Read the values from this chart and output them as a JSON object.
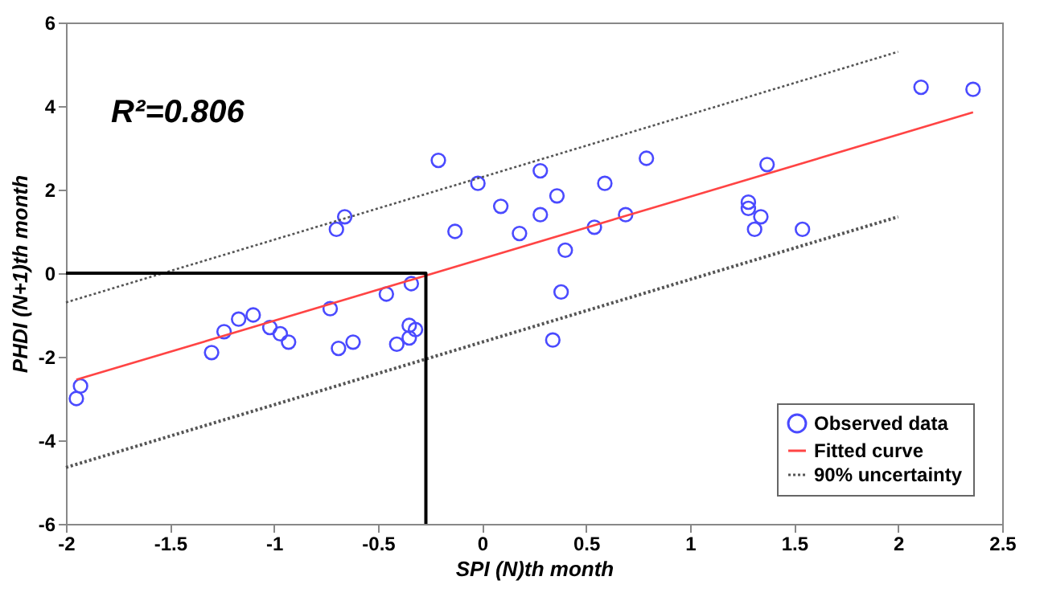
{
  "chart_data": {
    "type": "scatter",
    "xlabel": "SPI (N)th month",
    "ylabel": "PHDI (N+1)th month",
    "xlim": [
      -2,
      2.5
    ],
    "xticks": [
      -2,
      -1.5,
      -1,
      -0.5,
      0,
      0.5,
      1,
      1.5,
      2,
      2.5
    ],
    "ylim": [
      -6,
      6
    ],
    "yticks": [
      -6,
      -4,
      -2,
      0,
      2,
      4,
      6
    ],
    "grid": false,
    "legend": "bottom right",
    "annotations": [
      "R²=0.806"
    ],
    "series": [
      {
        "name": "Observed data",
        "marker": "circle",
        "color": "#4a4aff",
        "x": [
          -1.95,
          -1.93,
          -1.3,
          -1.24,
          -1.17,
          -1.1,
          -1.02,
          -0.97,
          -0.93,
          -0.73,
          -0.69,
          -0.62,
          -0.7,
          -0.66,
          -0.46,
          -0.41,
          -0.35,
          -0.32,
          -0.35,
          -0.34,
          -0.21,
          -0.13,
          -0.02,
          0.09,
          0.18,
          0.28,
          0.28,
          0.34,
          0.36,
          0.38,
          0.4,
          0.54,
          0.59,
          0.69,
          0.79,
          1.28,
          1.28,
          1.34,
          1.31,
          1.37,
          1.54,
          2.11,
          2.36
        ],
        "values": [
          -3.0,
          -2.7,
          -1.9,
          -1.4,
          -1.1,
          -1.0,
          -1.3,
          -1.45,
          -1.65,
          -0.85,
          -1.8,
          -1.65,
          1.05,
          1.35,
          -0.5,
          -1.7,
          -1.25,
          -1.35,
          -1.55,
          -0.25,
          2.7,
          1.0,
          2.15,
          1.6,
          0.95,
          2.45,
          1.4,
          -1.6,
          1.85,
          -0.45,
          0.55,
          1.1,
          2.15,
          1.4,
          2.75,
          1.7,
          1.55,
          1.35,
          1.05,
          2.6,
          1.05,
          4.45,
          4.4
        ]
      },
      {
        "name": "Fitted curve",
        "type": "line",
        "line_style": "solid",
        "color": "#ff4444",
        "x": [
          -1.95,
          2.36
        ],
        "values": [
          -2.55,
          3.85
        ]
      },
      {
        "name": "90% uncertainty",
        "type": "line",
        "line_style": "dotted",
        "color": "#555555",
        "x": [
          -2,
          2.0
        ],
        "values": [
          -0.7,
          5.3
        ]
      },
      {
        "type": "line",
        "line_style": "dotted",
        "color": "#555555",
        "x": [
          -2,
          2.0
        ],
        "values": [
          -4.65,
          1.35
        ]
      },
      {
        "type": "line",
        "line_style": "solid",
        "color": "#000000",
        "x": [
          -0.27,
          -0.27,
          -2
        ],
        "values": [
          -6,
          0,
          0
        ]
      }
    ]
  }
}
